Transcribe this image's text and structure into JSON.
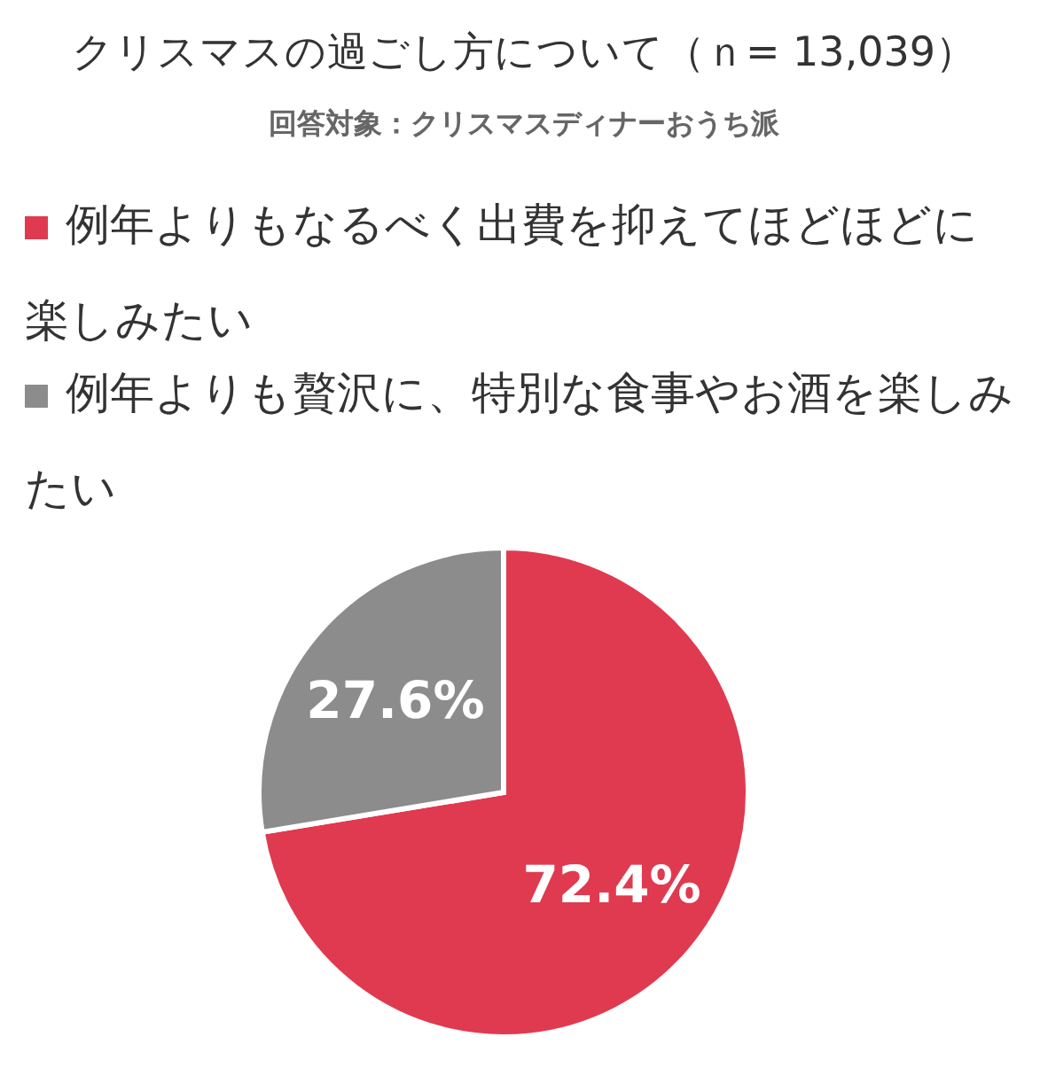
{
  "chart_data": {
    "type": "pie",
    "title": "クリスマスの過ごし方について（ｎ= 13,039）",
    "subtitle": "回答対象：クリスマスディナーおうち派",
    "categories": [
      "例年よりもなるべく出費を抑えてほどほどに楽しみたい",
      "例年よりも贅沢に、特別な食事やお酒を楽しみたい"
    ],
    "values": [
      72.4,
      27.6
    ],
    "colors": [
      "#e03a50",
      "#8c8c8c"
    ],
    "value_labels": [
      "72.4%",
      "27.6%"
    ],
    "legend": "top"
  }
}
